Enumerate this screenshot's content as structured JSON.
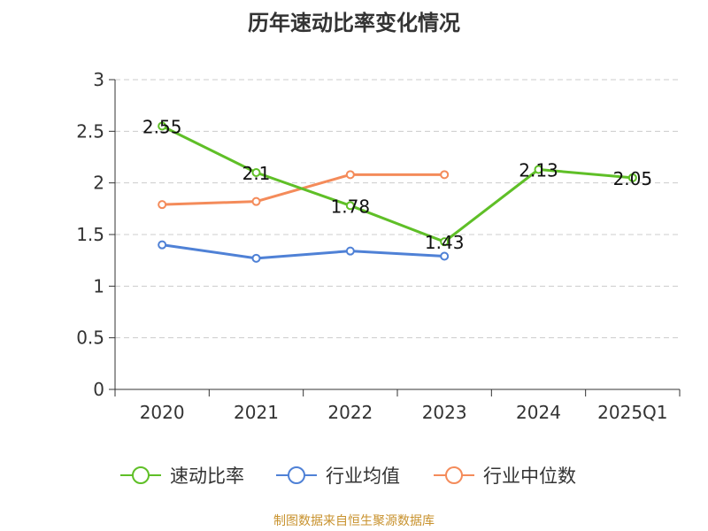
{
  "chart_data": {
    "type": "line",
    "title": "历年速动比率变化情况",
    "categories": [
      "2020",
      "2021",
      "2022",
      "2023",
      "2024",
      "2025Q1"
    ],
    "y_ticks": [
      "0",
      "0.5",
      "1",
      "1.5",
      "2",
      "2.5",
      "3"
    ],
    "ylim": [
      0,
      3
    ],
    "grid": true,
    "legend_position": "bottom",
    "series": [
      {
        "name": "速动比率",
        "color": "#5fbf27",
        "values": [
          2.55,
          2.1,
          1.78,
          1.43,
          2.13,
          2.05
        ],
        "labels": [
          "2.55",
          "2.1",
          "1.78",
          "1.43",
          "2.13",
          "2.05"
        ],
        "show_labels": true
      },
      {
        "name": "行业均值",
        "color": "#4f81d6",
        "values": [
          1.4,
          1.27,
          1.34,
          1.29,
          null,
          null
        ],
        "show_labels": false
      },
      {
        "name": "行业中位数",
        "color": "#f48b5a",
        "values": [
          1.79,
          1.82,
          2.08,
          2.08,
          null,
          null
        ],
        "show_labels": false
      }
    ]
  },
  "footer": {
    "source": "制图数据来自恒生聚源数据库"
  }
}
